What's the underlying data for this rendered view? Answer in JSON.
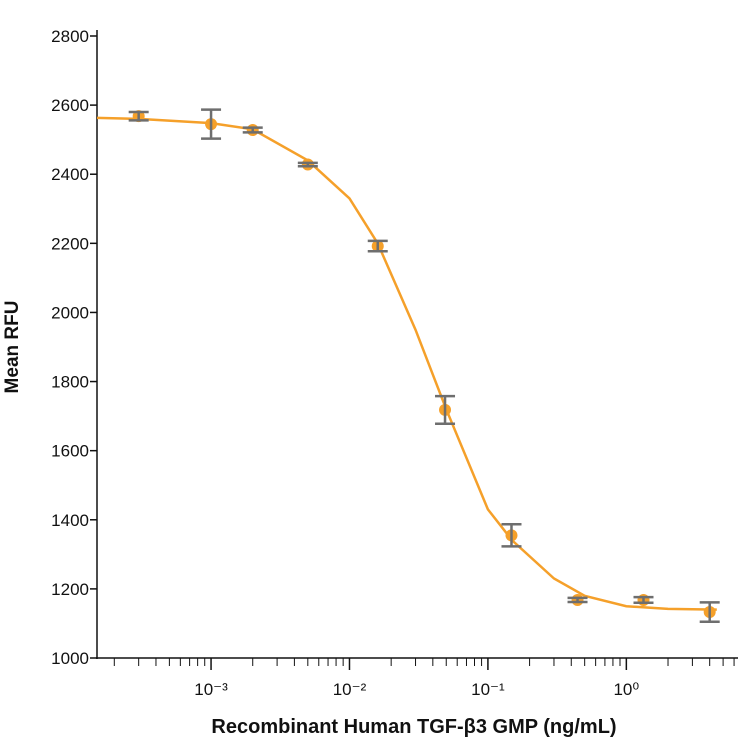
{
  "chart_data": {
    "type": "scatter",
    "x_label": "Recombinant Human TGF-β3 GMP (ng/mL)",
    "y_label": "Mean RFU",
    "log_x": true,
    "series": [
      {
        "color": "#f5a02a",
        "error_color": "#6e6e6e",
        "x": [
          0.0003,
          0.001,
          0.002,
          0.005,
          0.016,
          0.049,
          0.148,
          0.444,
          1.33,
          4
        ],
        "values": [
          2568,
          2545,
          2528,
          2428,
          2192,
          1718,
          1355,
          1168,
          1168,
          1133
        ],
        "errors": [
          12,
          42,
          7,
          5,
          15,
          40,
          32,
          6,
          8,
          28
        ]
      }
    ],
    "curve": {
      "color": "#f5a02a",
      "x": [
        0.00015,
        0.0003,
        0.001,
        0.002,
        0.005,
        0.01,
        0.016,
        0.03,
        0.05,
        0.1,
        0.15,
        0.3,
        0.5,
        1,
        2,
        4.5
      ],
      "values": [
        2563,
        2560,
        2548,
        2530,
        2440,
        2330,
        2200,
        1950,
        1720,
        1430,
        1340,
        1230,
        1180,
        1150,
        1142,
        1140
      ]
    },
    "xlim": [
      0.00015,
      6.3
    ],
    "ylim": [
      1000,
      2800
    ],
    "xticks": [
      {
        "value": 0.001,
        "label": "10⁻³"
      },
      {
        "value": 0.01,
        "label": "10⁻²"
      },
      {
        "value": 0.1,
        "label": "10⁻¹"
      },
      {
        "value": 1,
        "label": "10⁰"
      }
    ],
    "xminorticks": [
      0.0002,
      0.0003,
      0.0004,
      0.0005,
      0.0006,
      0.0007,
      0.0008,
      0.0009,
      0.002,
      0.003,
      0.004,
      0.005,
      0.006,
      0.007,
      0.008,
      0.009,
      0.02,
      0.03,
      0.04,
      0.05,
      0.06,
      0.07,
      0.08,
      0.09,
      0.2,
      0.3,
      0.4,
      0.5,
      0.6,
      0.7,
      0.8,
      0.9,
      2,
      3,
      4,
      5,
      6
    ],
    "yticks": [
      1000,
      1200,
      1400,
      1600,
      1800,
      2000,
      2200,
      2400,
      2600,
      2800
    ]
  }
}
